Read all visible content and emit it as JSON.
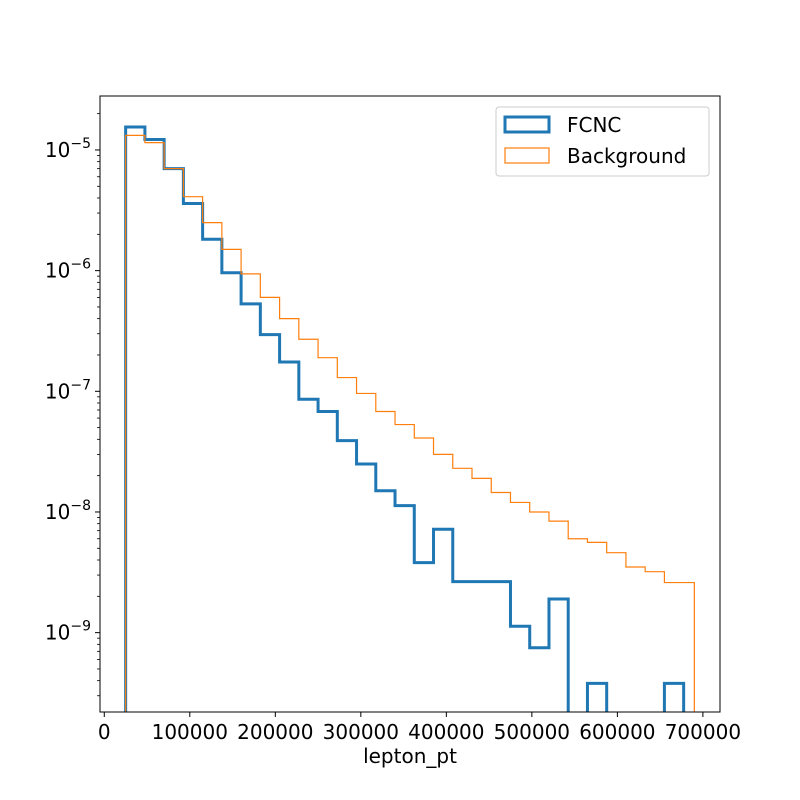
{
  "chart_data": {
    "type": "histogram-step",
    "title": "",
    "xlabel": "lepton_pt",
    "ylabel": "",
    "yscale": "log",
    "xlim": [
      -5000,
      720000
    ],
    "ylim": [
      2.2e-10,
      2.8e-05
    ],
    "grid": false,
    "legend_position": "top-right",
    "x_ticks": [
      0,
      100000,
      200000,
      300000,
      400000,
      500000,
      600000,
      700000
    ],
    "x_tick_labels": [
      "0",
      "100000",
      "200000",
      "300000",
      "400000",
      "500000",
      "600000",
      "700000"
    ],
    "y_ticks": [
      1e-09,
      1e-08,
      1e-07,
      1e-06,
      1e-05
    ],
    "y_tick_labels": [
      {
        "base": "10",
        "exp": "−9"
      },
      {
        "base": "10",
        "exp": "−8"
      },
      {
        "base": "10",
        "exp": "−7"
      },
      {
        "base": "10",
        "exp": "−6"
      },
      {
        "base": "10",
        "exp": "−5"
      }
    ],
    "bin_edges": [
      25000,
      47500,
      70000,
      92500,
      115000,
      137500,
      160000,
      182500,
      205000,
      227500,
      250000,
      272500,
      295000,
      317500,
      340000,
      362500,
      385000,
      407500,
      430000,
      452500,
      475000,
      497500,
      520000,
      542500,
      565000,
      587500,
      610000,
      632500,
      655000,
      677500,
      690000
    ],
    "series": [
      {
        "name": "FCNC",
        "color": "#1f77b4",
        "line_width": 3,
        "values": [
          1.55e-05,
          1.22e-05,
          7e-06,
          3.6e-06,
          1.82e-06,
          9.6e-07,
          5.3e-07,
          2.95e-07,
          1.75e-07,
          8.6e-08,
          6.8e-08,
          3.9e-08,
          2.5e-08,
          1.5e-08,
          1.13e-08,
          3.8e-09,
          7.2e-09,
          2.65e-09,
          2.65e-09,
          2.65e-09,
          1.13e-09,
          7.5e-10,
          1.9e-09,
          0,
          3.8e-10,
          0,
          0,
          0,
          3.8e-10,
          0
        ]
      },
      {
        "name": "Background",
        "color": "#ff7f0e",
        "line_width": 1.2,
        "values": [
          1.32e-05,
          1.15e-05,
          7e-06,
          4.1e-06,
          2.5e-06,
          1.5e-06,
          9.4e-07,
          6e-07,
          4e-07,
          2.7e-07,
          1.9e-07,
          1.3e-07,
          9.6e-08,
          6.8e-08,
          5.3e-08,
          4.1e-08,
          3e-08,
          2.3e-08,
          1.9e-08,
          1.45e-08,
          1.2e-08,
          1e-08,
          8.4e-09,
          6e-09,
          5.6e-09,
          4.6e-09,
          3.5e-09,
          3.2e-09,
          2.6e-09,
          2.6e-09
        ]
      }
    ]
  }
}
